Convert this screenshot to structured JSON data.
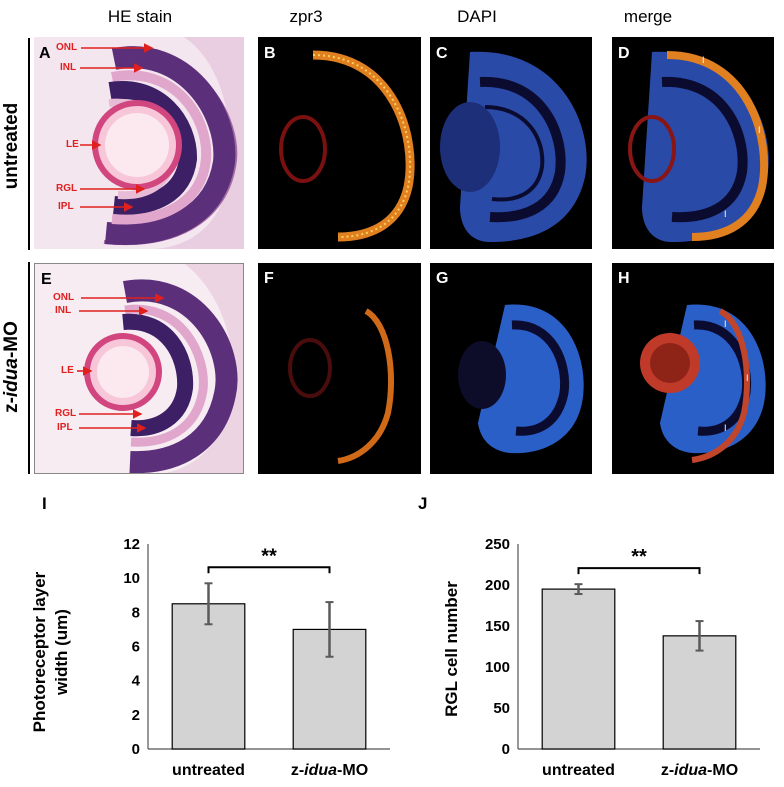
{
  "columns": [
    "HE stain",
    "zpr3",
    "DAPI",
    "merge"
  ],
  "rows": [
    {
      "label": "untreated",
      "panels": [
        "A",
        "B",
        "C",
        "D"
      ]
    },
    {
      "label_prefix": "z-",
      "label_italic": "idua",
      "label_suffix": "-MO",
      "panels": [
        "E",
        "F",
        "G",
        "H"
      ]
    }
  ],
  "he_annotations": {
    "top": [
      "ONL",
      "INL",
      "LE",
      "RGL",
      "IPL"
    ],
    "bottom": [
      "ONL",
      "INL",
      "LE",
      "RGL",
      "IPL"
    ]
  },
  "colors": {
    "annotation": "#e0201e",
    "bar_fill": "#d3d3d3",
    "error_bar": "#5a5a5a"
  },
  "chart_data": [
    {
      "panel": "I",
      "type": "bar",
      "categories": [
        "untreated",
        "z-idua-MO"
      ],
      "values": [
        8.5,
        7.0
      ],
      "error": [
        1.2,
        1.6
      ],
      "ylabel_line1": "Photoreceptor layer",
      "ylabel_line2": "width (um)",
      "ylim": [
        0,
        12
      ],
      "yticks": [
        0,
        2,
        4,
        6,
        8,
        10,
        12
      ],
      "significance": "**"
    },
    {
      "panel": "J",
      "type": "bar",
      "categories": [
        "untreated",
        "z-idua-MO"
      ],
      "values": [
        195,
        138
      ],
      "error": [
        6,
        18
      ],
      "ylabel_line1": "RGL cell number",
      "ylim": [
        0,
        250
      ],
      "yticks": [
        0,
        50,
        100,
        150,
        200,
        250
      ],
      "significance": "**"
    }
  ]
}
